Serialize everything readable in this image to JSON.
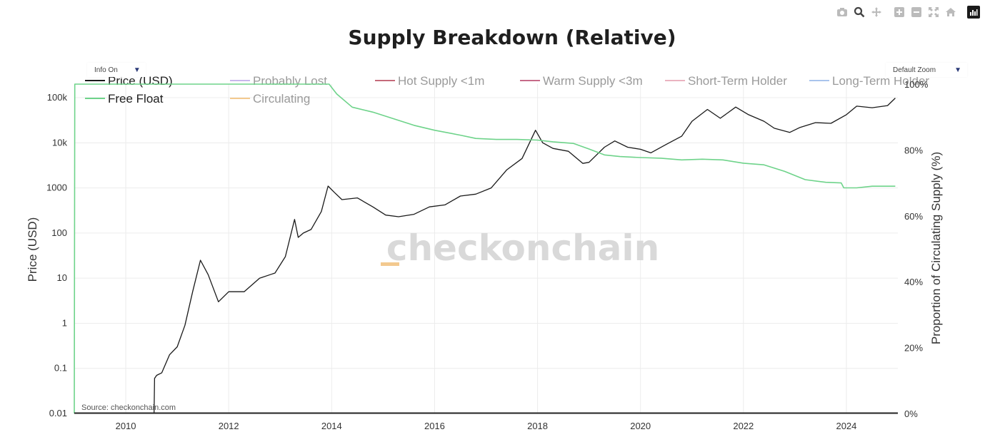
{
  "toolbar": {
    "icons": [
      "camera-icon",
      "zoom-icon",
      "pan-icon",
      "zoom-in-icon",
      "zoom-out-icon",
      "autoscale-icon",
      "home-icon",
      "plotly-logo-icon"
    ]
  },
  "controls": {
    "info_label": "Info On",
    "zoom_label": "Default Zoom",
    "arrow": "▼"
  },
  "source_note": "Source: checkonchain.com",
  "watermark": "checkonchain",
  "chart_data": {
    "type": "line",
    "title": "Supply Breakdown (Relative)",
    "ylabel": "Price (USD)",
    "y2label": "Proportion of Circulating Supply (%)",
    "x_ticks": [
      "2010",
      "2012",
      "2014",
      "2016",
      "2018",
      "2020",
      "2022",
      "2024"
    ],
    "x_range": [
      2009.0,
      2025.0
    ],
    "y_scale": "log",
    "y_range": [
      0.01,
      200000
    ],
    "y_ticks": [
      0.01,
      0.1,
      1,
      10,
      100,
      1000,
      10000,
      100000
    ],
    "y_tick_labels": [
      "0.01",
      "0.1",
      "1",
      "10",
      "100",
      "1000",
      "10k",
      "100k"
    ],
    "y2_range": [
      0,
      100
    ],
    "y2_ticks": [
      0,
      20,
      40,
      60,
      80,
      100
    ],
    "y2_tick_labels": [
      "0%",
      "20%",
      "40%",
      "60%",
      "80%",
      "100%"
    ],
    "legend": [
      {
        "name": "Price (USD)",
        "color": "#1a1a1a",
        "active": true
      },
      {
        "name": "Probably Lost",
        "color": "#c9b8ec",
        "active": false
      },
      {
        "name": "Hot Supply <1m",
        "color": "#c56a7a",
        "active": false
      },
      {
        "name": "Warm Supply <3m",
        "color": "#c66a88",
        "active": false
      },
      {
        "name": "Short-Term Holder",
        "color": "#eab3c0",
        "active": false
      },
      {
        "name": "Long-Term Holder",
        "color": "#a9c4ec",
        "active": false
      },
      {
        "name": "Free Float",
        "color": "#6ed38a",
        "active": true
      },
      {
        "name": "Circulating",
        "color": "#f3c98f",
        "active": false
      }
    ],
    "series": [
      {
        "name": "Price (USD)",
        "axis": "y",
        "color": "#1a1a1a",
        "x": [
          2010.55,
          2010.56,
          2010.6,
          2010.7,
          2010.85,
          2011.0,
          2011.15,
          2011.3,
          2011.45,
          2011.6,
          2011.8,
          2012.0,
          2012.3,
          2012.6,
          2012.9,
          2013.1,
          2013.28,
          2013.35,
          2013.45,
          2013.6,
          2013.8,
          2013.93,
          2014.05,
          2014.2,
          2014.5,
          2014.8,
          2015.05,
          2015.3,
          2015.6,
          2015.9,
          2016.2,
          2016.5,
          2016.8,
          2017.1,
          2017.4,
          2017.7,
          2017.96,
          2018.1,
          2018.3,
          2018.6,
          2018.88,
          2019.0,
          2019.3,
          2019.5,
          2019.75,
          2020.0,
          2020.2,
          2020.5,
          2020.8,
          2021.0,
          2021.3,
          2021.55,
          2021.85,
          2022.1,
          2022.4,
          2022.6,
          2022.9,
          2023.1,
          2023.4,
          2023.7,
          2024.0,
          2024.2,
          2024.5,
          2024.8,
          2024.95
        ],
        "y": [
          0.007,
          0.06,
          0.07,
          0.08,
          0.2,
          0.3,
          0.9,
          5,
          25,
          12,
          3,
          5,
          5,
          10,
          13,
          30,
          200,
          80,
          100,
          120,
          300,
          1100,
          800,
          550,
          600,
          380,
          250,
          230,
          260,
          380,
          420,
          660,
          730,
          1000,
          2500,
          4500,
          19000,
          10000,
          7500,
          6500,
          3500,
          3700,
          8000,
          11000,
          8000,
          7200,
          6000,
          9200,
          14000,
          30000,
          55000,
          35000,
          62000,
          42000,
          30000,
          21000,
          17000,
          22000,
          28000,
          27000,
          42000,
          65000,
          60000,
          67000,
          98000
        ]
      },
      {
        "name": "Free Float",
        "axis": "y2",
        "color": "#6ed38a",
        "x": [
          2009.0,
          2009.01,
          2013.95,
          2014.1,
          2014.4,
          2014.8,
          2015.2,
          2015.6,
          2016.0,
          2016.5,
          2016.8,
          2017.2,
          2017.6,
          2018.0,
          2018.3,
          2018.7,
          2019.0,
          2019.3,
          2019.6,
          2020.0,
          2020.4,
          2020.8,
          2021.2,
          2021.6,
          2022.0,
          2022.4,
          2022.8,
          2023.2,
          2023.6,
          2023.9,
          2023.95,
          2024.2,
          2024.5,
          2024.95
        ],
        "y": [
          0,
          100,
          100,
          97,
          93,
          91.5,
          89.5,
          87.5,
          86,
          84.5,
          83.5,
          83.2,
          83.2,
          83,
          82.5,
          82,
          80.3,
          78.5,
          78,
          77.7,
          77.5,
          77,
          77.2,
          77,
          76,
          75.5,
          73.5,
          71,
          70.2,
          70,
          68.5,
          68.5,
          69,
          69
        ]
      }
    ]
  }
}
